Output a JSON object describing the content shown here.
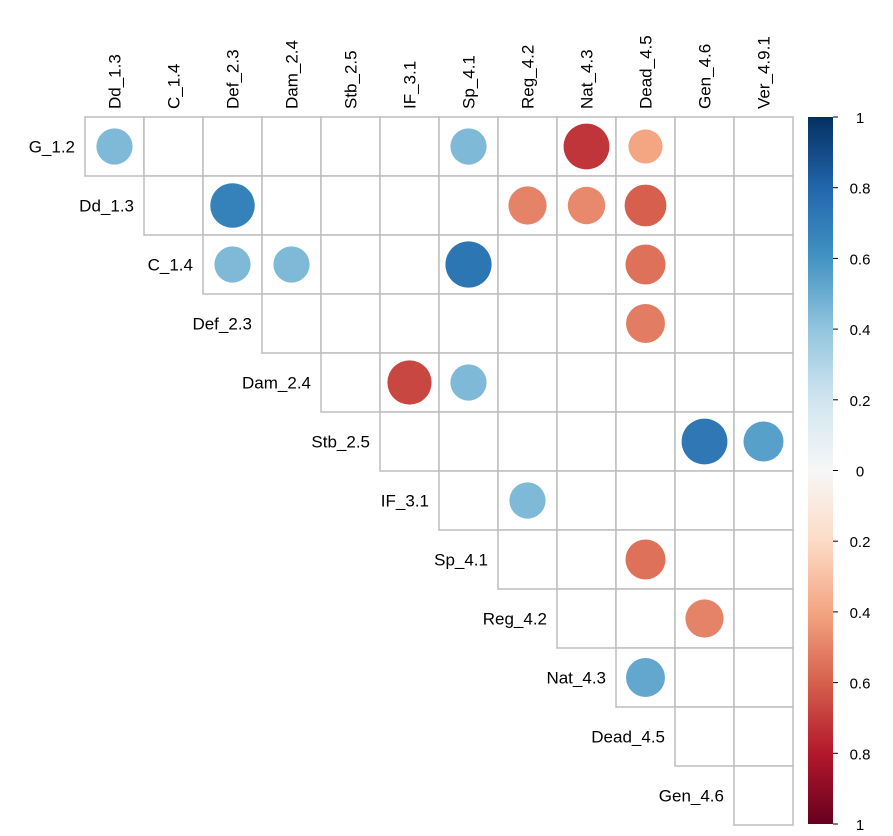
{
  "chart_data": {
    "type": "heatmap",
    "subtype": "correlation-circle-upper",
    "columns": [
      "Dd_1.3",
      "C_1.4",
      "Def_2.3",
      "Dam_2.4",
      "Stb_2.5",
      "IF_3.1",
      "Sp_4.1",
      "Reg_4.2",
      "Nat_4.3",
      "Dead_4.5",
      "Gen_4.6",
      "Ver_4.9.1"
    ],
    "rows": [
      "G_1.2",
      "Dd_1.3",
      "C_1.4",
      "Def_2.3",
      "Dam_2.4",
      "Stb_2.5",
      "IF_3.1",
      "Sp_4.1",
      "Reg_4.2",
      "Nat_4.3",
      "Dead_4.5",
      "Gen_4.6"
    ],
    "cells": [
      {
        "row": "G_1.2",
        "col": "Dd_1.3",
        "value": 0.45
      },
      {
        "row": "G_1.2",
        "col": "Sp_4.1",
        "value": 0.45
      },
      {
        "row": "G_1.2",
        "col": "Nat_4.3",
        "value": -0.72
      },
      {
        "row": "G_1.2",
        "col": "Dead_4.5",
        "value": -0.4
      },
      {
        "row": "Dd_1.3",
        "col": "Def_2.3",
        "value": 0.68
      },
      {
        "row": "Dd_1.3",
        "col": "Reg_4.2",
        "value": -0.5
      },
      {
        "row": "Dd_1.3",
        "col": "Nat_4.3",
        "value": -0.48
      },
      {
        "row": "Dd_1.3",
        "col": "Dead_4.5",
        "value": -0.6
      },
      {
        "row": "C_1.4",
        "col": "Def_2.3",
        "value": 0.45
      },
      {
        "row": "C_1.4",
        "col": "Dam_2.4",
        "value": 0.45
      },
      {
        "row": "C_1.4",
        "col": "Sp_4.1",
        "value": 0.73
      },
      {
        "row": "C_1.4",
        "col": "Dead_4.5",
        "value": -0.55
      },
      {
        "row": "Def_2.3",
        "col": "Dead_4.5",
        "value": -0.52
      },
      {
        "row": "Dam_2.4",
        "col": "IF_3.1",
        "value": -0.67
      },
      {
        "row": "Dam_2.4",
        "col": "Sp_4.1",
        "value": 0.45
      },
      {
        "row": "Stb_2.5",
        "col": "Gen_4.6",
        "value": 0.72
      },
      {
        "row": "Stb_2.5",
        "col": "Ver_4.9.1",
        "value": 0.55
      },
      {
        "row": "IF_3.1",
        "col": "Reg_4.2",
        "value": 0.45
      },
      {
        "row": "Sp_4.1",
        "col": "Dead_4.5",
        "value": -0.55
      },
      {
        "row": "Reg_4.2",
        "col": "Gen_4.6",
        "value": -0.5
      },
      {
        "row": "Nat_4.3",
        "col": "Dead_4.5",
        "value": 0.52
      }
    ],
    "colorbar": {
      "ticks": [
        "1",
        "0.8",
        "0.6",
        "0.4",
        "0.2",
        "0",
        "0.2",
        "0.4",
        "0.6",
        "0.8",
        "1"
      ],
      "range": [
        -1,
        1
      ],
      "colors_top_to_bottom": [
        "#053061",
        "#2166ac",
        "#4393c3",
        "#92c5de",
        "#d1e5f0",
        "#f7f7f7",
        "#fddbc7",
        "#f4a582",
        "#d6604d",
        "#b2182b",
        "#67001f"
      ]
    },
    "grid_color": "#bdbdbd"
  }
}
